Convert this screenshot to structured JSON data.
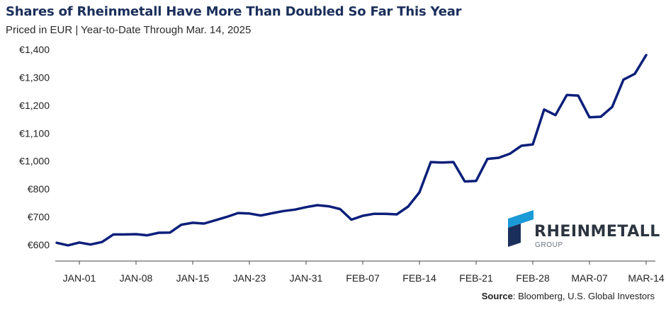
{
  "title": "Shares of Rheinmetall Have More Than Doubled So Far This Year",
  "subtitle": "Priced in EUR | Year-to-Date Through Mar. 14, 2025",
  "source": {
    "label": "Source",
    "text": ": Bloomberg, U.S. Global Investors"
  },
  "logo": {
    "name": "RHEINMETALL",
    "group": "GROUP",
    "mark": "rheinmetall-logo-icon",
    "colors": [
      "#1a9ad6",
      "#1b2f5b"
    ]
  },
  "chart_data": {
    "type": "line",
    "ylim": [
      600,
      1400
    ],
    "ytick_values": [
      600,
      700,
      800,
      1000,
      1100,
      1200,
      1300,
      1400
    ],
    "ytick_labels": [
      "€600",
      "€700",
      "€800",
      "€1,000",
      "€1,100",
      "€1,200",
      "€1,300",
      "€1,400"
    ],
    "xtick_labels": [
      "JAN-01",
      "JAN-08",
      "JAN-15",
      "JAN-23",
      "JAN-31",
      "FEB-07",
      "FEB-14",
      "FEB-21",
      "FEB-28",
      "MAR-07",
      "MAR-14"
    ],
    "xtick_index": [
      2,
      7,
      12,
      17,
      22,
      27,
      32,
      37,
      42,
      47,
      52
    ],
    "grid": false,
    "line_color": "#0c1f7a",
    "series": [
      {
        "values": [
          607,
          598,
          608,
          601,
          610,
          637,
          637,
          638,
          634,
          643,
          644,
          672,
          679,
          676,
          688,
          700,
          714,
          712,
          705,
          713,
          721,
          726,
          735,
          742,
          738,
          728,
          690,
          704,
          711,
          711,
          709,
          737,
          788,
          993,
          990,
          993,
          854,
          858,
          1008,
          1012,
          1027,
          1055,
          1060,
          1185,
          1165,
          1237,
          1235,
          1157,
          1159,
          1194,
          1292,
          1313,
          1380
        ]
      }
    ]
  }
}
